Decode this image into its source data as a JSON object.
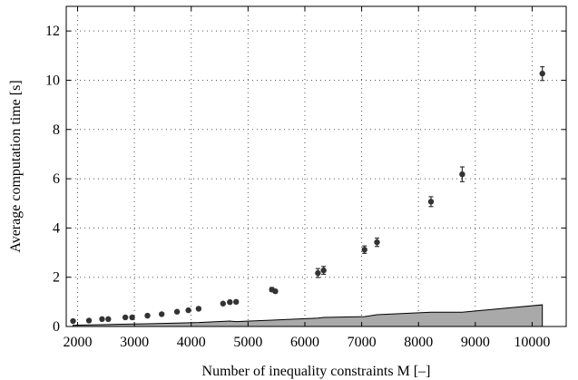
{
  "chart_data": {
    "type": "scatter",
    "title": "",
    "xlabel": "Number of inequality constraints M [–]",
    "ylabel": "Average computation time [s]",
    "xlim": [
      1800,
      10600
    ],
    "ylim": [
      0,
      13
    ],
    "xticks": [
      2000,
      3000,
      4000,
      5000,
      6000,
      7000,
      8000,
      9000,
      10000
    ],
    "yticks": [
      0,
      2,
      4,
      6,
      8,
      10,
      12
    ],
    "grid": true,
    "series": [
      {
        "kind": "points-with-errorbars",
        "color": "#333333",
        "points": [
          {
            "x": 1920,
            "y": 0.22,
            "err": 0.02
          },
          {
            "x": 2200,
            "y": 0.24,
            "err": 0.02
          },
          {
            "x": 2430,
            "y": 0.3,
            "err": 0.03
          },
          {
            "x": 2540,
            "y": 0.3,
            "err": 0.03
          },
          {
            "x": 2840,
            "y": 0.37,
            "err": 0.03
          },
          {
            "x": 2960,
            "y": 0.37,
            "err": 0.03
          },
          {
            "x": 3230,
            "y": 0.44,
            "err": 0.03
          },
          {
            "x": 3480,
            "y": 0.5,
            "err": 0.03
          },
          {
            "x": 3750,
            "y": 0.6,
            "err": 0.04
          },
          {
            "x": 3950,
            "y": 0.66,
            "err": 0.04
          },
          {
            "x": 4130,
            "y": 0.72,
            "err": 0.04
          },
          {
            "x": 4560,
            "y": 0.93,
            "err": 0.05
          },
          {
            "x": 4680,
            "y": 0.99,
            "err": 0.06
          },
          {
            "x": 4790,
            "y": 1.0,
            "err": 0.06
          },
          {
            "x": 5420,
            "y": 1.5,
            "err": 0.08
          },
          {
            "x": 5480,
            "y": 1.43,
            "err": 0.07
          },
          {
            "x": 6230,
            "y": 2.17,
            "err": 0.18
          },
          {
            "x": 6330,
            "y": 2.28,
            "err": 0.16
          },
          {
            "x": 7050,
            "y": 3.12,
            "err": 0.15
          },
          {
            "x": 7270,
            "y": 3.42,
            "err": 0.17
          },
          {
            "x": 8220,
            "y": 5.07,
            "err": 0.2
          },
          {
            "x": 8770,
            "y": 6.18,
            "err": 0.3
          },
          {
            "x": 10180,
            "y": 10.27,
            "err": 0.28
          }
        ]
      },
      {
        "kind": "area",
        "color": "#a9a9a9",
        "x": [
          1920,
          2540,
          3230,
          3750,
          4130,
          4680,
          4790,
          5420,
          6230,
          6330,
          7050,
          7270,
          8220,
          8770,
          10180
        ],
        "y": [
          0.05,
          0.08,
          0.11,
          0.14,
          0.16,
          0.22,
          0.2,
          0.26,
          0.34,
          0.37,
          0.4,
          0.48,
          0.58,
          0.58,
          0.88
        ]
      }
    ]
  }
}
